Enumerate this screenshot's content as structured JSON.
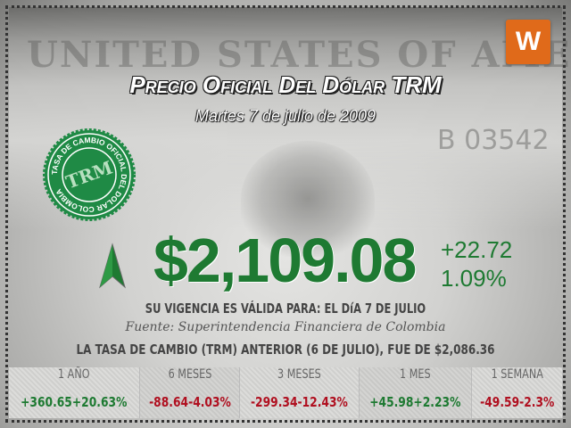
{
  "background": {
    "bill_text": "UNITED STATES OF AMERICA",
    "serial": "B 03542"
  },
  "logo": {
    "letter": "W",
    "color": "#e06a1a"
  },
  "title": "Precio Oficial Del Dólar TRM",
  "date": "Martes 7 de julio de 2009",
  "stamp": {
    "center": "TRM",
    "ring": "TASA DE CAMBIO OFICIAL DEL DOLAR COLOMBIA",
    "color": "#1f8a45"
  },
  "rate": {
    "value": "$2,109.08",
    "change": "+22.72",
    "change_pct": "1.09%",
    "direction": "up",
    "color": "#1e7a32"
  },
  "validity": "SU VIGENCIA ES VÁLIDA PARA: EL DíA 7 DE JULIO",
  "source": "Fuente: Superintendencia Financiera de Colombia",
  "previous": "LA TASA DE CAMBIO (TRM) ANTERIOR (6 DE JULIO), FUE DE $2,086.36",
  "periods": [
    {
      "label": "1 AÑO",
      "change": "+360.65",
      "pct": "+20.63%",
      "dir": "up"
    },
    {
      "label": "6 MESES",
      "change": "-88.64",
      "pct": "-4.03%",
      "dir": "down"
    },
    {
      "label": "3 MESES",
      "change": "-299.34",
      "pct": "-12.43%",
      "dir": "down"
    },
    {
      "label": "1 MES",
      "change": "+45.98",
      "pct": "+2.23%",
      "dir": "up"
    },
    {
      "label": "1 SEMANA",
      "change": "-49.59",
      "pct": "-2.3%",
      "dir": "down"
    }
  ],
  "colors": {
    "up": "#1e7a32",
    "down": "#b01020"
  }
}
